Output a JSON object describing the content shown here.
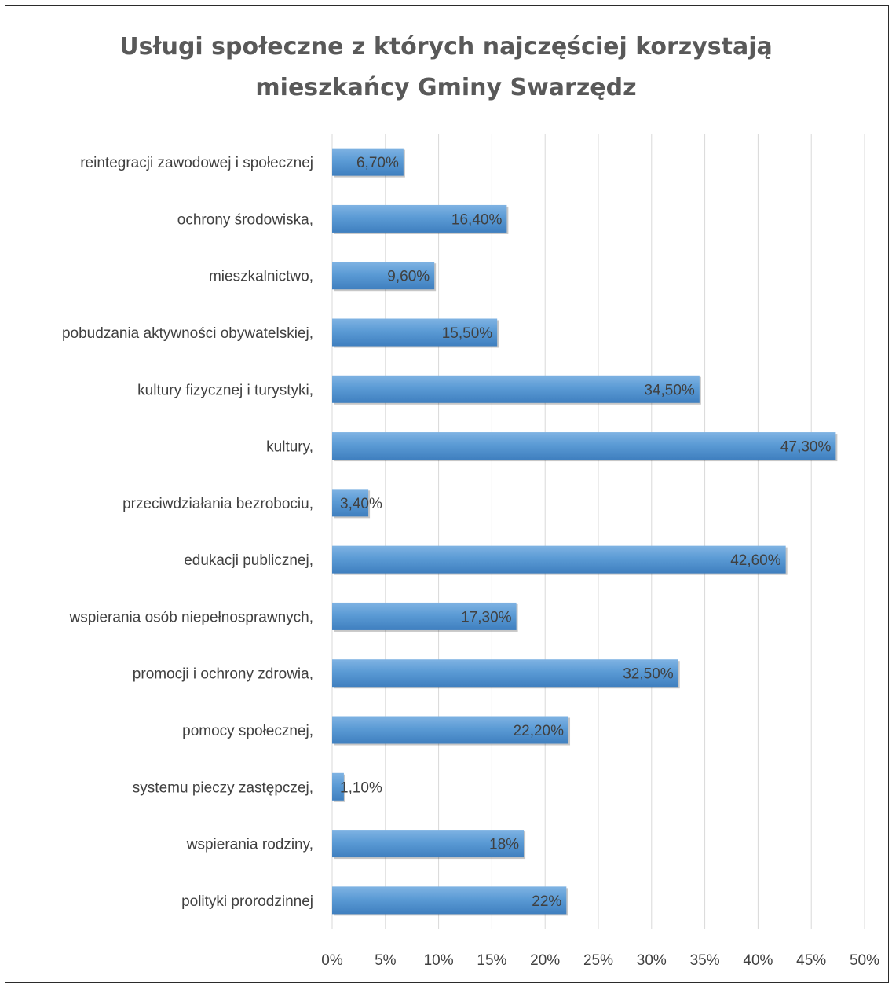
{
  "chart_data": {
    "type": "bar",
    "orientation": "horizontal",
    "title_lines": [
      "Usługi społeczne z których najczęściej korzystają",
      "mieszkańcy Gminy Swarzędz"
    ],
    "categories": [
      "reintegracji zawodowej i społecznej",
      "ochrony środowiska,",
      "mieszkalnictwo,",
      "pobudzania aktywności obywatelskiej,",
      "kultury fizycznej i turystyki,",
      "kultury,",
      "przeciwdziałania bezrobociu,",
      "edukacji publicznej,",
      "wspierania osób niepełnosprawnych,",
      "promocji i ochrony zdrowia,",
      "pomocy społecznej,",
      "systemu pieczy zastępczej,",
      "wspierania rodziny,",
      "polityki prorodzinnej"
    ],
    "values": [
      6.7,
      16.4,
      9.6,
      15.5,
      34.5,
      47.3,
      3.4,
      42.6,
      17.3,
      32.5,
      22.2,
      1.1,
      18,
      22
    ],
    "value_labels": [
      "6,70%",
      "16,40%",
      "9,60%",
      "15,50%",
      "34,50%",
      "47,30%",
      "3,40%",
      "42,60%",
      "17,30%",
      "32,50%",
      "22,20%",
      "1,10%",
      "18%",
      "22%"
    ],
    "x_ticks": [
      0,
      5,
      10,
      15,
      20,
      25,
      30,
      35,
      40,
      45,
      50
    ],
    "x_tick_labels": [
      "0%",
      "5%",
      "10%",
      "15%",
      "20%",
      "25%",
      "30%",
      "35%",
      "40%",
      "45%",
      "50%"
    ],
    "xlim": [
      0,
      50
    ],
    "grid": true,
    "legend": "none",
    "colors": {
      "bar": "#5b9bd5",
      "bar_light": "#7fb3e3",
      "bar_dark": "#3f7fbf",
      "grid": "#d9d9d9",
      "text": "#404040",
      "title": "#595959"
    }
  }
}
